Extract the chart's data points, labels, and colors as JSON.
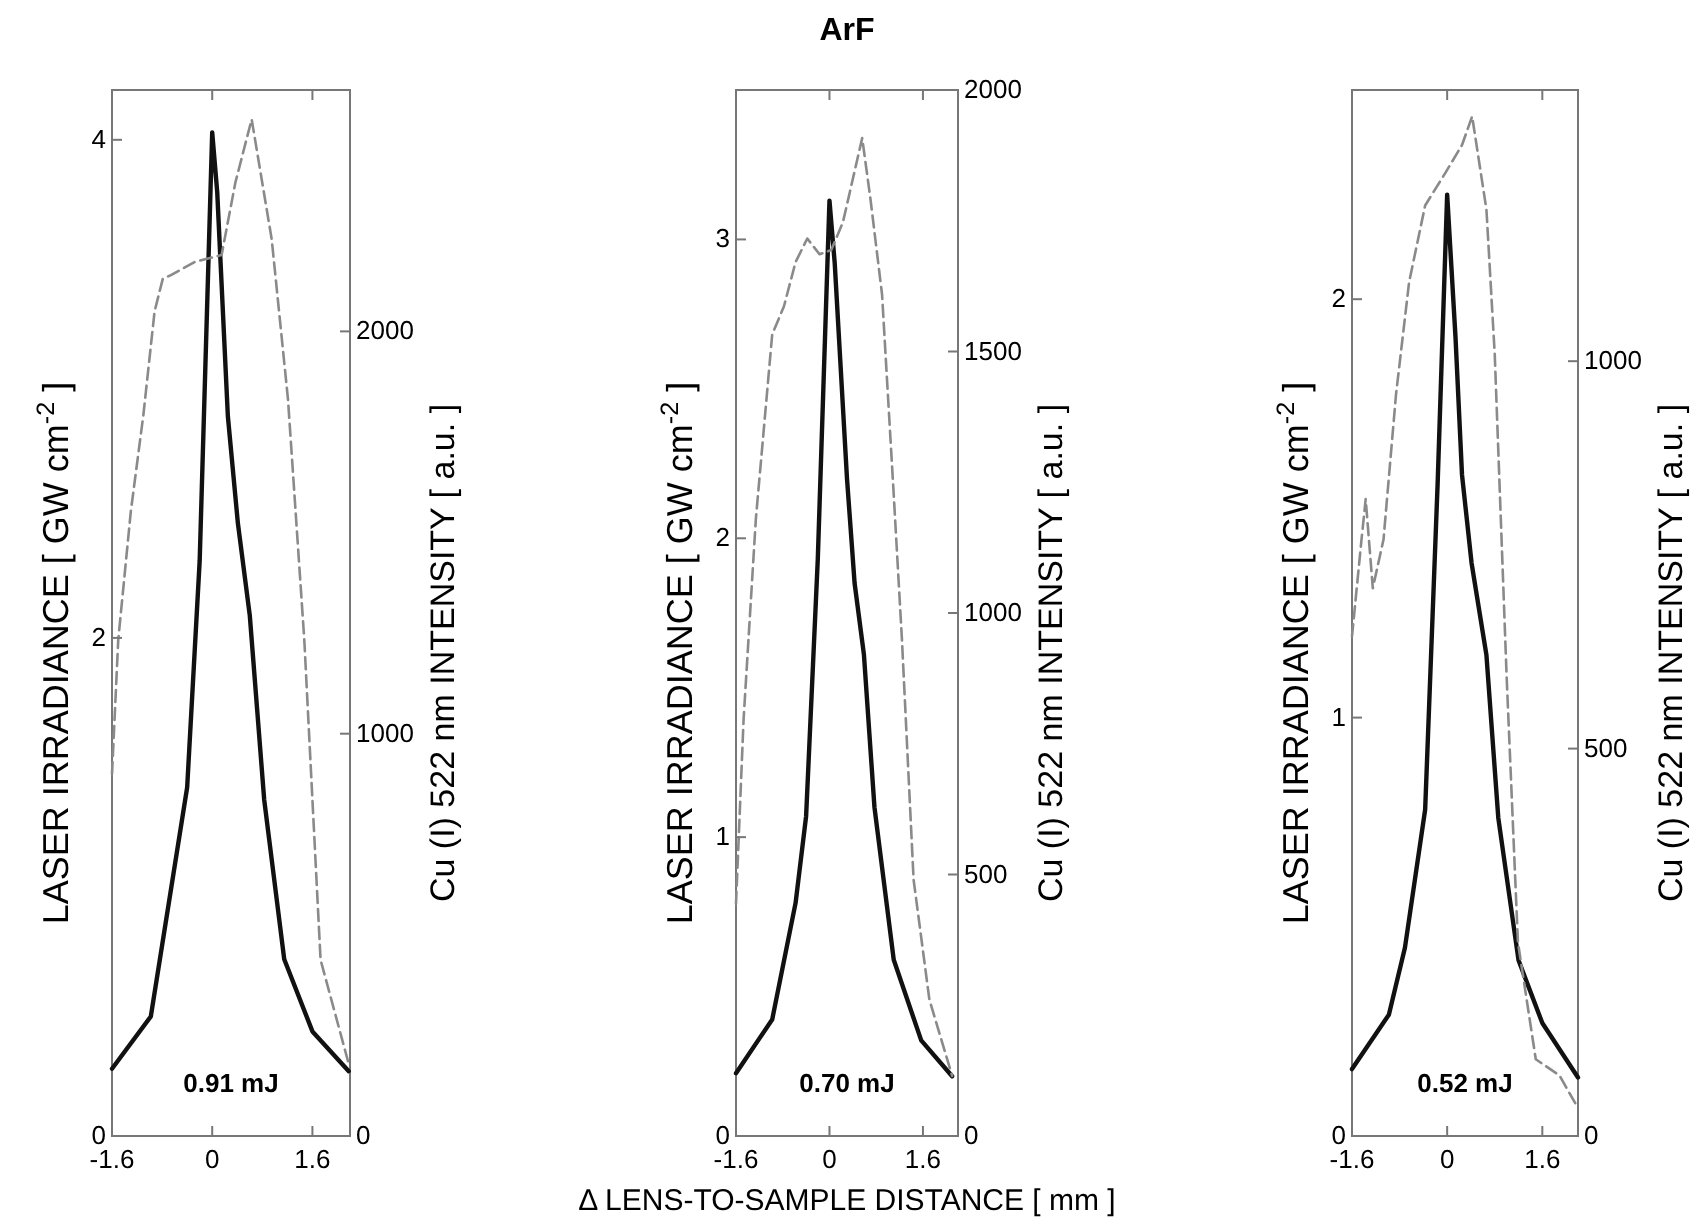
{
  "chart_data": [
    {
      "type": "line",
      "ylabel": "LASER IRRADIANCE  [ GW cm$^{-2}$ ]",
      "y2label": "Cu (I) 522 nm INTENSITY [ a.u. ]",
      "annotations": [
        "0.91 mJ"
      ],
      "xlim": [
        -1.6,
        2.2
      ],
      "xticks": [
        -1.6,
        0,
        1.6
      ],
      "ylim": [
        0,
        4.2
      ],
      "yticks": [
        0,
        2,
        4
      ],
      "y2lim": [
        0,
        2600
      ],
      "y2ticks": [
        0,
        1000,
        2000
      ],
      "series": [
        {
          "color": "#111111",
          "line_style": "solid",
          "x": [
            -1.6,
            -0.98,
            -0.4,
            -0.2,
            0,
            0.08,
            0.25,
            0.41,
            0.6,
            0.83,
            1.15,
            1.6,
            2.18
          ],
          "values": [
            0.27,
            0.48,
            1.4,
            2.31,
            4.03,
            3.79,
            2.89,
            2.46,
            2.09,
            1.35,
            0.71,
            0.42,
            0.26
          ]
        },
        {
          "color": "#8a8a8a",
          "line_style": "dashed",
          "axis": "y2",
          "x": [
            -1.6,
            -1.5,
            -1.3,
            -1.1,
            -0.92,
            -0.79,
            -0.66,
            -0.27,
            0.15,
            0.37,
            0.63,
            0.95,
            1.21,
            1.47,
            1.73,
            2.18
          ],
          "values": [
            900,
            1234,
            1552,
            1791,
            2050,
            2130,
            2140,
            2173,
            2190,
            2370,
            2527,
            2229,
            1831,
            1234,
            438,
            179
          ]
        }
      ]
    },
    {
      "type": "line",
      "title": "ArF",
      "xlabel": "Δ LENS-TO-SAMPLE DISTANCE [ mm ]",
      "ylabel": "LASER IRRADIANCE  [ GW cm$^{-2}$ ]",
      "y2label": "Cu (I) 522 nm INTENSITY [ a.u. ]",
      "annotations": [
        "0.70 mJ"
      ],
      "xlim": [
        -1.6,
        2.2
      ],
      "xticks": [
        -1.6,
        0,
        1.6
      ],
      "ylim": [
        0,
        3.5
      ],
      "yticks": [
        0,
        1,
        2,
        3
      ],
      "y2lim": [
        0,
        2000
      ],
      "y2ticks": [
        0,
        500,
        1000,
        1500,
        2000
      ],
      "series": [
        {
          "color": "#111111",
          "line_style": "solid",
          "x": [
            -1.6,
            -0.98,
            -0.58,
            -0.4,
            -0.2,
            0,
            0.09,
            0.3,
            0.43,
            0.59,
            0.77,
            1.1,
            1.57,
            2.1
          ],
          "values": [
            0.21,
            0.39,
            0.78,
            1.07,
            1.93,
            3.13,
            2.92,
            2.2,
            1.85,
            1.61,
            1.1,
            0.59,
            0.32,
            0.2
          ]
        },
        {
          "color": "#8a8a8a",
          "line_style": "dashed",
          "axis": "y2",
          "x": [
            -1.6,
            -1.47,
            -1.26,
            -0.98,
            -0.78,
            -0.58,
            -0.38,
            -0.17,
            0.03,
            0.23,
            0.56,
            0.7,
            0.9,
            1.1,
            1.24,
            1.44,
            1.71,
            2.1
          ],
          "values": [
            444,
            797,
            1180,
            1533,
            1586,
            1671,
            1716,
            1686,
            1694,
            1747,
            1908,
            1793,
            1609,
            1226,
            950,
            490,
            261,
            115
          ]
        }
      ]
    },
    {
      "type": "line",
      "ylabel": "LASER IRRADIANCE  [ GW cm$^{-2}$ ]",
      "y2label": "Cu (I) 522 nm INTENSITY [ a.u. ]",
      "annotations": [
        "0.52 mJ"
      ],
      "xlim": [
        -1.6,
        2.2
      ],
      "xticks": [
        -1.6,
        0,
        1.6
      ],
      "ylim": [
        0,
        2.5
      ],
      "yticks": [
        0,
        1,
        2
      ],
      "y2lim": [
        0,
        1350
      ],
      "y2ticks": [
        0,
        500,
        1000
      ],
      "series": [
        {
          "color": "#111111",
          "line_style": "solid",
          "x": [
            -1.6,
            -0.98,
            -0.71,
            -0.37,
            -0.16,
            0,
            0.14,
            0.25,
            0.41,
            0.66,
            0.86,
            1.2,
            1.6,
            2.2
          ],
          "values": [
            0.16,
            0.29,
            0.45,
            0.78,
            1.56,
            2.25,
            1.91,
            1.58,
            1.37,
            1.15,
            0.76,
            0.42,
            0.27,
            0.14
          ]
        },
        {
          "color": "#8a8a8a",
          "line_style": "dashed",
          "axis": "y2",
          "x": [
            -1.6,
            -1.44,
            -1.37,
            -1.25,
            -1.07,
            -0.86,
            -0.64,
            -0.37,
            -0.03,
            0.25,
            0.42,
            0.66,
            0.8,
            1.0,
            1.19,
            1.49,
            1.89,
            2.2
          ],
          "values": [
            645,
            770,
            822,
            707,
            770,
            957,
            1102,
            1201,
            1243,
            1279,
            1316,
            1196,
            1009,
            593,
            250,
            99,
            78,
            36
          ]
        }
      ]
    }
  ]
}
